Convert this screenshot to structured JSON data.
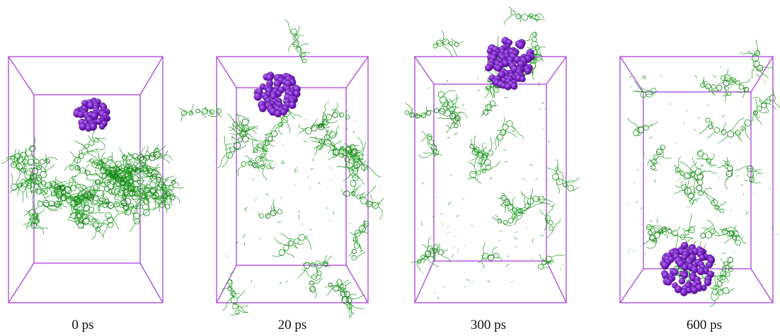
{
  "figure": {
    "frames": [
      {
        "id": "frame-0ps",
        "caption": "0 ps"
      },
      {
        "id": "frame-20ps",
        "caption": "20 ps"
      },
      {
        "id": "frame-300ps",
        "caption": "300 ps"
      },
      {
        "id": "frame-600ps",
        "caption": "600 ps"
      }
    ],
    "colors": {
      "box": "#b04fe0",
      "molecule": "#1f9a1f",
      "molecule_dark": "#0f6a12",
      "cluster": "#7a1fc8",
      "cluster_dark": "#4a0f80",
      "cluster_light": "#b070f0"
    }
  }
}
